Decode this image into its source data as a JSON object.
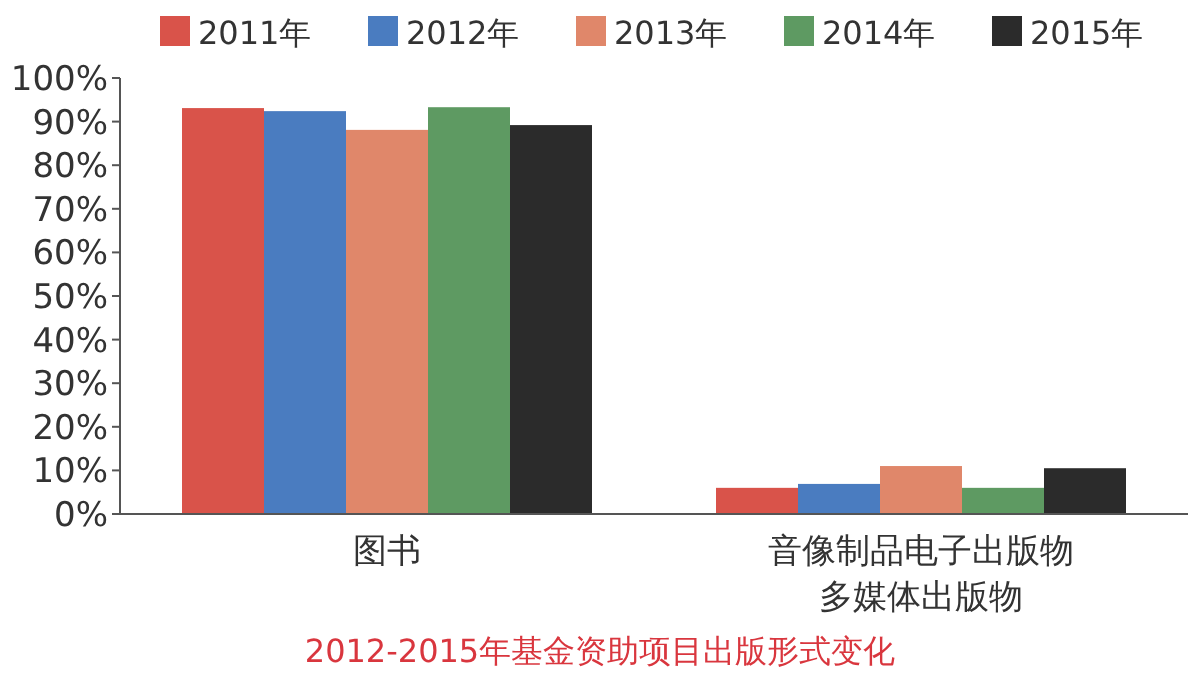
{
  "chart_data": {
    "type": "bar",
    "title": "2012-2015年基金资助项目出版形式变化",
    "categories": [
      "图书",
      "音像制品电子出版物多媒体出版物"
    ],
    "series": [
      {
        "name": "2011年",
        "color": "#d9534a",
        "values": [
          93.1,
          6.0
        ]
      },
      {
        "name": "2012年",
        "color": "#4a7cc0",
        "values": [
          92.4,
          6.9
        ]
      },
      {
        "name": "2013年",
        "color": "#e0876a",
        "values": [
          88.1,
          11.0
        ]
      },
      {
        "name": "2014年",
        "color": "#5e9a62",
        "values": [
          93.3,
          6.0
        ]
      },
      {
        "name": "2015年",
        "color": "#2b2b2b",
        "values": [
          89.2,
          10.5
        ]
      }
    ],
    "ylim": [
      0,
      100
    ],
    "yticks": [
      {
        "value": 0,
        "label": "0%"
      },
      {
        "value": 10,
        "label": "10%"
      },
      {
        "value": 20,
        "label": "20%"
      },
      {
        "value": 30,
        "label": "30%"
      },
      {
        "value": 40,
        "label": "40%"
      },
      {
        "value": 50,
        "label": "50%"
      },
      {
        "value": 60,
        "label": "60%"
      },
      {
        "value": 70,
        "label": "70%"
      },
      {
        "value": 80,
        "label": "80%"
      },
      {
        "value": 90,
        "label": "90%"
      },
      {
        "value": 100,
        "label": "100%"
      }
    ],
    "legend": "top"
  }
}
